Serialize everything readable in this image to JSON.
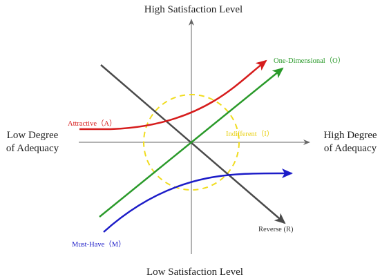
{
  "diagram": {
    "axes": {
      "top_label": "High Satisfaction Level",
      "bottom_label": "Low Satisfaction Level",
      "left_label_line1": "Low Degree",
      "left_label_line2": "of Adequacy",
      "right_label_line1": "High Degree",
      "right_label_line2": "of Adequacy"
    },
    "curves": {
      "attractive": {
        "label": "Attractive（A）",
        "color": "#d61c1c"
      },
      "one_dimensional": {
        "label": "One-Dimensional（O）",
        "color": "#2a9a2a"
      },
      "indifferent": {
        "label": "Indifferent（I）",
        "color": "#f0dc1e"
      },
      "must_have": {
        "label": "Must-Have（M）",
        "color": "#1c1cc8"
      },
      "reverse": {
        "label": "Reverse (R)",
        "color": "#4a4a4a"
      }
    }
  }
}
